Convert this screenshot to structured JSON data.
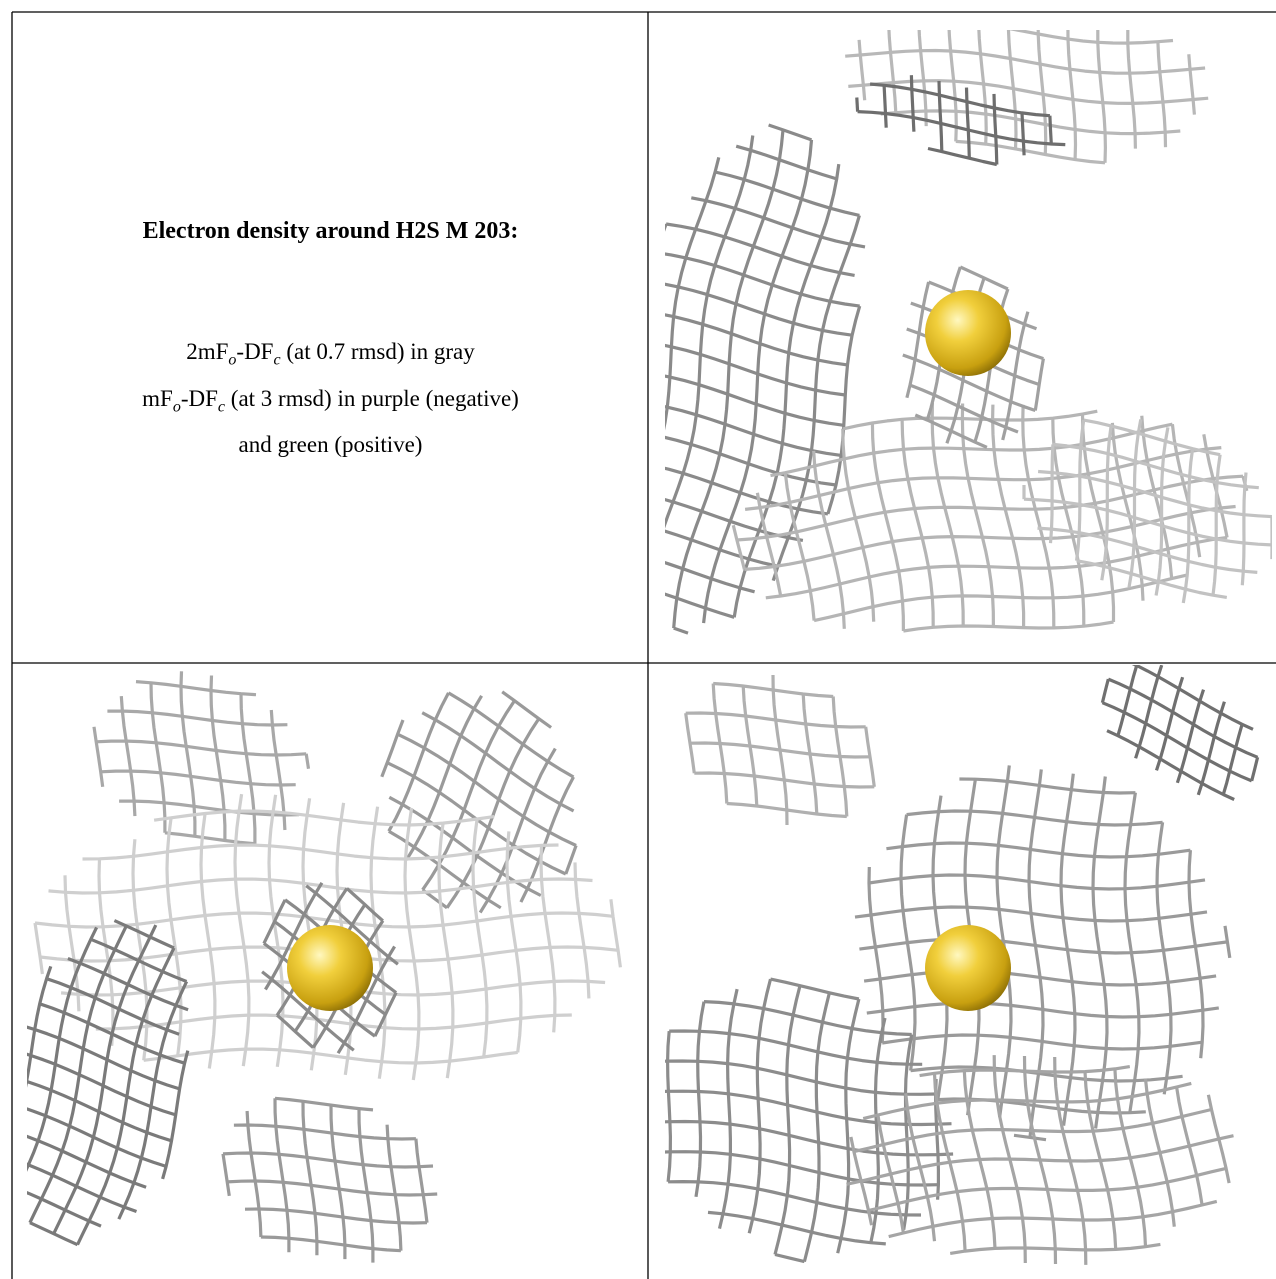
{
  "panel_text": {
    "title": "Electron density around H2S M 203:",
    "lines": [
      [
        "2mF",
        "o",
        "-DF",
        "c",
        " (at 0.7 rmsd) in gray"
      ],
      [
        "mF",
        "o",
        "-DF",
        "c",
        " (at 3 rmsd) in purple (negative)"
      ],
      [
        "and green (positive)"
      ]
    ]
  }
}
